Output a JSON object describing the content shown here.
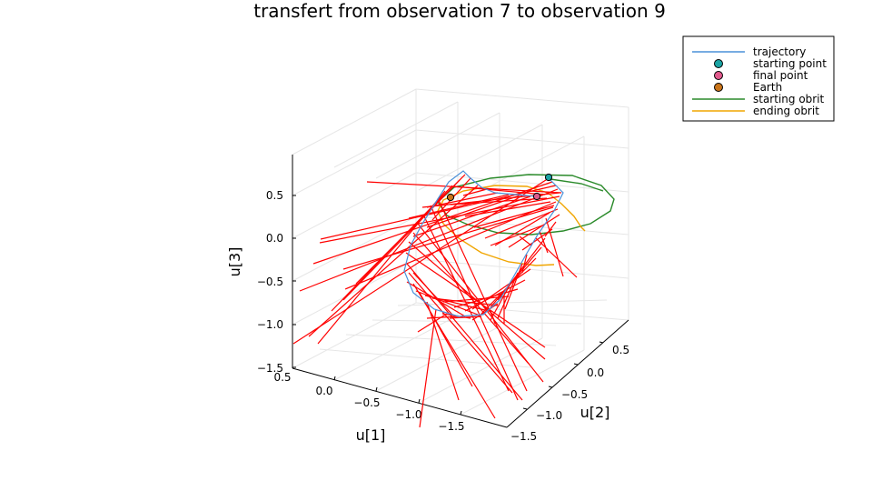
{
  "chart_data": {
    "type": "line",
    "projection": "3d",
    "title": "transfert from observation 7 to observation 9",
    "axes": {
      "x": {
        "label": "u[1]",
        "ticks": [
          "0.5",
          "0.0",
          "−0.5",
          "−1.0",
          "−1.5"
        ],
        "range": [
          -1.9,
          0.5
        ]
      },
      "y": {
        "label": "u[2]",
        "ticks": [
          "0.5",
          "0.0",
          "−0.5",
          "−1.0",
          "−1.5"
        ],
        "range": [
          -1.6,
          0.9
        ]
      },
      "z": {
        "label": "u[3]",
        "ticks": [
          "0.5",
          "0.0",
          "−0.5",
          "−1.0",
          "−1.5"
        ],
        "range": [
          -1.5,
          0.95
        ]
      }
    },
    "grid": true,
    "legend_position": "top-right",
    "legend": [
      {
        "label": "trajectory",
        "kind": "line",
        "color": "#4a90d9"
      },
      {
        "label": "starting point",
        "kind": "marker",
        "color": "#1aa3a3"
      },
      {
        "label": "final point",
        "kind": "marker",
        "color": "#e05a8c"
      },
      {
        "label": "Earth",
        "kind": "marker",
        "color": "#c9741a"
      },
      {
        "label": "starting obrit",
        "kind": "line",
        "color": "#2a8a2a"
      },
      {
        "label": "ending obrit",
        "kind": "line",
        "color": "#f0a500"
      }
    ],
    "thrust_color": "#ff0000",
    "starting_orbit_color": "#2a8a2a",
    "ending_orbit_color": "#f0a500",
    "trajectory_color": "#4a90d9",
    "earth_color": "#c9741a",
    "start_color": "#1aa3a3",
    "final_color": "#e05a8c"
  }
}
